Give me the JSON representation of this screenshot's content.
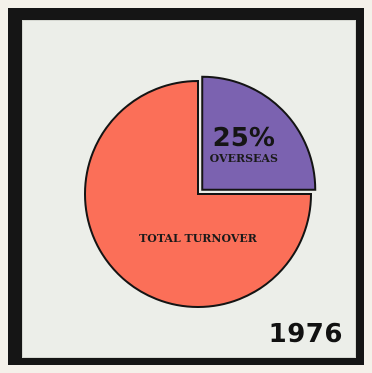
{
  "chart_data": {
    "type": "pie",
    "year": "1976",
    "slices": [
      {
        "label": "OVERSEAS",
        "value_label": "25%",
        "value": 25,
        "color": "#7b62b0",
        "exploded": true
      },
      {
        "label": "TOTAL TURNOVER",
        "value_label": "",
        "value": 75,
        "color": "#fb6f58",
        "exploded": false
      }
    ]
  }
}
